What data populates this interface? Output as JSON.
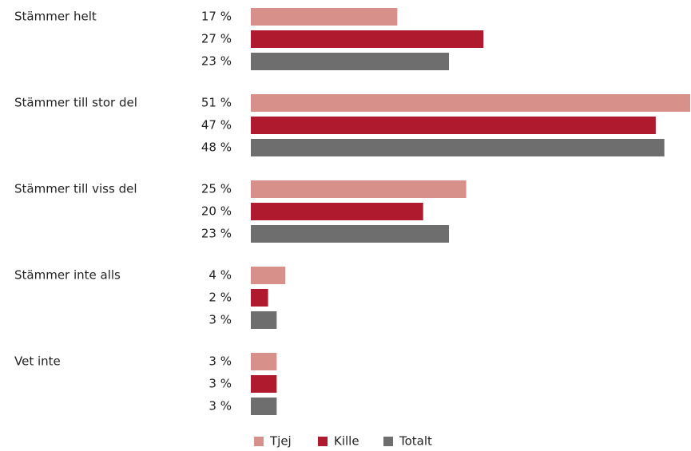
{
  "chart_data": {
    "type": "bar",
    "orientation": "horizontal",
    "categories": [
      "Stämmer helt",
      "Stämmer till stor del",
      "Stämmer till viss del",
      "Stämmer inte alls",
      "Vet inte"
    ],
    "series": [
      {
        "name": "Tjej",
        "color": "#d8908a",
        "values": [
          17,
          51,
          25,
          4,
          3
        ],
        "value_labels": [
          "17 %",
          "51 %",
          "25 %",
          "4 %",
          "3 %"
        ]
      },
      {
        "name": "Kille",
        "color": "#b01a2e",
        "values": [
          27,
          47,
          20,
          2,
          3
        ],
        "value_labels": [
          "27 %",
          "47 %",
          "20 %",
          "2 %",
          "3 %"
        ]
      },
      {
        "name": "Totalt",
        "color": "#6e6e6e",
        "values": [
          23,
          48,
          23,
          3,
          3
        ],
        "value_labels": [
          "23 %",
          "48 %",
          "23 %",
          "3 %",
          "3 %"
        ]
      }
    ],
    "xlim": [
      0,
      51
    ],
    "legend": "bottom"
  }
}
